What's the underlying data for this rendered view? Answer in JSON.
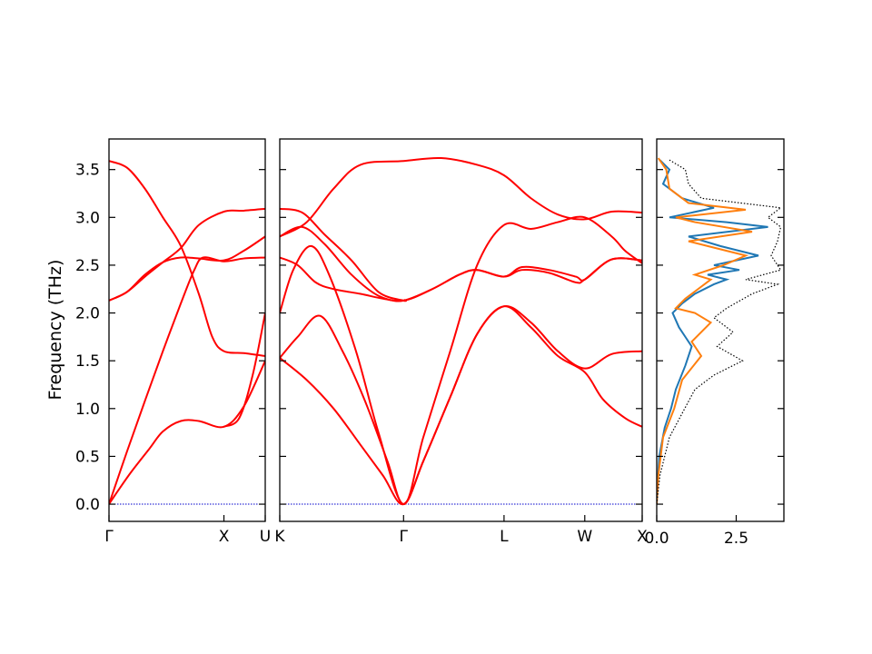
{
  "chart_data": {
    "type": "line",
    "ylabel": "Frequency (THz)",
    "ylim": [
      -0.18,
      3.82
    ],
    "y_ticks": [
      "0.0",
      "0.5",
      "1.0",
      "1.5",
      "2.0",
      "2.5",
      "3.0",
      "3.5"
    ],
    "band_color": "#ff0000",
    "zero_line_color": "#0000cc",
    "band_panels": [
      {
        "path_labels": [
          "Γ",
          "X",
          "U"
        ],
        "x_end": 1.74,
        "x_ticks": [
          0,
          1.28,
          1.74
        ],
        "branches": [
          [
            [
              0,
              0.0
            ],
            [
              0.1,
              0.14
            ],
            [
              0.25,
              0.34
            ],
            [
              0.45,
              0.58
            ],
            [
              0.6,
              0.76
            ],
            [
              0.8,
              0.87
            ],
            [
              1.0,
              0.87
            ],
            [
              1.28,
              0.81
            ],
            [
              1.5,
              1.02
            ],
            [
              1.74,
              1.5
            ]
          ],
          [
            [
              0,
              0.0
            ],
            [
              0.2,
              0.55
            ],
            [
              0.4,
              1.08
            ],
            [
              0.6,
              1.6
            ],
            [
              0.8,
              2.1
            ],
            [
              0.95,
              2.45
            ],
            [
              1.05,
              2.58
            ],
            [
              1.28,
              2.54
            ],
            [
              1.5,
              2.57
            ],
            [
              1.74,
              2.58
            ]
          ],
          [
            [
              0,
              2.13
            ],
            [
              0.2,
              2.22
            ],
            [
              0.4,
              2.4
            ],
            [
              0.6,
              2.53
            ],
            [
              0.8,
              2.58
            ],
            [
              1.0,
              2.57
            ],
            [
              1.28,
              2.55
            ],
            [
              1.5,
              2.65
            ],
            [
              1.74,
              2.8
            ]
          ],
          [
            [
              0,
              3.59
            ],
            [
              0.2,
              3.52
            ],
            [
              0.4,
              3.3
            ],
            [
              0.6,
              3.0
            ],
            [
              0.8,
              2.7
            ],
            [
              1.0,
              2.2
            ],
            [
              1.15,
              1.75
            ],
            [
              1.28,
              1.6
            ],
            [
              1.5,
              1.58
            ],
            [
              1.74,
              1.55
            ]
          ],
          [
            [
              0,
              2.13
            ],
            [
              0.2,
              2.22
            ],
            [
              0.4,
              2.38
            ],
            [
              0.6,
              2.53
            ],
            [
              0.8,
              2.68
            ],
            [
              1.0,
              2.92
            ],
            [
              1.28,
              3.06
            ],
            [
              1.5,
              3.07
            ],
            [
              1.74,
              3.09
            ]
          ],
          [
            [
              1.28,
              0.81
            ],
            [
              1.45,
              0.9
            ],
            [
              1.6,
              1.35
            ],
            [
              1.74,
              2.0
            ]
          ]
        ]
      },
      {
        "path_labels": [
          "K",
          "Γ",
          "L",
          "W",
          "X"
        ],
        "x_end": 4.04,
        "x_ticks": [
          0,
          1.38,
          2.5,
          3.4,
          4.04
        ],
        "branches": [
          [
            [
              0,
              1.53
            ],
            [
              0.3,
              1.3
            ],
            [
              0.6,
              1.0
            ],
            [
              0.9,
              0.62
            ],
            [
              1.15,
              0.3
            ],
            [
              1.38,
              0.0
            ],
            [
              1.6,
              0.45
            ],
            [
              1.9,
              1.12
            ],
            [
              2.2,
              1.78
            ],
            [
              2.5,
              2.07
            ],
            [
              2.8,
              1.9
            ],
            [
              3.1,
              1.6
            ],
            [
              3.4,
              1.42
            ],
            [
              3.7,
              1.57
            ],
            [
              4.04,
              1.6
            ]
          ],
          [
            [
              0,
              1.53
            ],
            [
              0.2,
              1.75
            ],
            [
              0.45,
              1.97
            ],
            [
              0.7,
              1.6
            ],
            [
              0.95,
              1.08
            ],
            [
              1.2,
              0.45
            ],
            [
              1.38,
              0.0
            ],
            [
              1.6,
              0.45
            ],
            [
              1.9,
              1.12
            ],
            [
              2.2,
              1.78
            ],
            [
              2.5,
              2.07
            ],
            [
              2.8,
              1.85
            ],
            [
              3.1,
              1.55
            ],
            [
              3.4,
              1.38
            ],
            [
              3.6,
              1.1
            ],
            [
              3.85,
              0.9
            ],
            [
              4.04,
              0.81
            ]
          ],
          [
            [
              0,
              2.0
            ],
            [
              0.15,
              2.45
            ],
            [
              0.35,
              2.7
            ],
            [
              0.55,
              2.4
            ],
            [
              0.85,
              1.6
            ],
            [
              1.1,
              0.75
            ],
            [
              1.38,
              0.0
            ],
            [
              1.6,
              0.7
            ],
            [
              1.9,
              1.6
            ],
            [
              2.2,
              2.5
            ],
            [
              2.5,
              2.92
            ],
            [
              2.8,
              2.88
            ],
            [
              3.1,
              2.95
            ],
            [
              3.4,
              3.0
            ],
            [
              3.7,
              2.8
            ],
            [
              3.85,
              2.65
            ],
            [
              4.04,
              2.52
            ]
          ],
          [
            [
              0,
              2.58
            ],
            [
              0.2,
              2.5
            ],
            [
              0.4,
              2.32
            ],
            [
              0.6,
              2.25
            ],
            [
              0.9,
              2.2
            ],
            [
              1.15,
              2.15
            ],
            [
              1.38,
              2.13
            ],
            [
              1.7,
              2.25
            ],
            [
              2.0,
              2.4
            ],
            [
              2.2,
              2.45
            ],
            [
              2.5,
              2.38
            ],
            [
              2.7,
              2.45
            ],
            [
              3.0,
              2.42
            ],
            [
              3.3,
              2.32
            ],
            [
              3.4,
              2.35
            ],
            [
              3.7,
              2.56
            ],
            [
              4.04,
              2.55
            ]
          ],
          [
            [
              0,
              2.8
            ],
            [
              0.25,
              2.9
            ],
            [
              0.5,
              2.72
            ],
            [
              0.8,
              2.4
            ],
            [
              1.1,
              2.18
            ],
            [
              1.38,
              2.13
            ],
            [
              1.7,
              2.25
            ],
            [
              2.0,
              2.4
            ],
            [
              2.2,
              2.45
            ],
            [
              2.5,
              2.38
            ],
            [
              2.7,
              2.48
            ],
            [
              3.0,
              2.45
            ],
            [
              3.3,
              2.38
            ],
            [
              3.4,
              2.35
            ],
            [
              3.7,
              2.56
            ],
            [
              4.04,
              2.55
            ]
          ],
          [
            [
              0,
              3.09
            ],
            [
              0.25,
              3.05
            ],
            [
              0.5,
              2.82
            ],
            [
              0.8,
              2.55
            ],
            [
              1.1,
              2.22
            ],
            [
              1.38,
              2.13
            ],
            [
              1.4,
              2.14
            ]
          ],
          [
            [
              0,
              2.8
            ],
            [
              0.3,
              2.95
            ],
            [
              0.6,
              3.3
            ],
            [
              0.9,
              3.55
            ],
            [
              1.38,
              3.59
            ],
            [
              1.8,
              3.62
            ],
            [
              2.2,
              3.55
            ],
            [
              2.5,
              3.44
            ],
            [
              2.8,
              3.2
            ],
            [
              3.1,
              3.03
            ],
            [
              3.4,
              2.98
            ],
            [
              3.7,
              3.06
            ],
            [
              4.04,
              3.05
            ]
          ]
        ]
      }
    ],
    "dos_panel": {
      "x_ticks": [
        "0.0",
        "2.5"
      ],
      "xlim": [
        0,
        4.0
      ],
      "series": [
        {
          "color": "#1f77b4",
          "style": "solid",
          "points": [
            [
              0,
              0.0
            ],
            [
              0.02,
              0.2
            ],
            [
              0.08,
              0.5
            ],
            [
              0.25,
              0.8
            ],
            [
              0.45,
              1.0
            ],
            [
              0.6,
              1.2
            ],
            [
              0.9,
              1.45
            ],
            [
              1.0,
              1.55
            ],
            [
              1.1,
              1.65
            ],
            [
              0.9,
              1.75
            ],
            [
              0.7,
              1.85
            ],
            [
              0.5,
              2.0
            ],
            [
              0.8,
              2.1
            ],
            [
              1.2,
              2.2
            ],
            [
              1.8,
              2.3
            ],
            [
              2.2,
              2.35
            ],
            [
              1.6,
              2.4
            ],
            [
              2.6,
              2.45
            ],
            [
              1.8,
              2.5
            ],
            [
              3.2,
              2.6
            ],
            [
              2.0,
              2.7
            ],
            [
              1.0,
              2.8
            ],
            [
              3.5,
              2.9
            ],
            [
              2.2,
              2.95
            ],
            [
              0.4,
              3.0
            ],
            [
              1.8,
              3.1
            ],
            [
              0.8,
              3.2
            ],
            [
              0.2,
              3.35
            ],
            [
              0.4,
              3.5
            ],
            [
              0.1,
              3.6
            ]
          ]
        },
        {
          "color": "#ff7f0e",
          "style": "solid",
          "points": [
            [
              0,
              0.0
            ],
            [
              0.05,
              0.3
            ],
            [
              0.2,
              0.7
            ],
            [
              0.55,
              1.0
            ],
            [
              0.8,
              1.3
            ],
            [
              1.4,
              1.55
            ],
            [
              1.1,
              1.7
            ],
            [
              1.7,
              1.9
            ],
            [
              1.2,
              2.0
            ],
            [
              0.6,
              2.05
            ],
            [
              0.9,
              2.15
            ],
            [
              1.3,
              2.25
            ],
            [
              1.7,
              2.35
            ],
            [
              1.2,
              2.4
            ],
            [
              2.1,
              2.5
            ],
            [
              2.8,
              2.6
            ],
            [
              1.6,
              2.7
            ],
            [
              1.0,
              2.75
            ],
            [
              3.0,
              2.85
            ],
            [
              1.2,
              2.95
            ],
            [
              0.6,
              3.0
            ],
            [
              2.8,
              3.08
            ],
            [
              1.0,
              3.15
            ],
            [
              0.4,
              3.3
            ],
            [
              0.3,
              3.5
            ],
            [
              0.05,
              3.62
            ]
          ]
        },
        {
          "color": "#000000",
          "style": "dotted",
          "points": [
            [
              0,
              0.0
            ],
            [
              0.1,
              0.3
            ],
            [
              0.4,
              0.7
            ],
            [
              0.8,
              0.95
            ],
            [
              1.2,
              1.2
            ],
            [
              1.8,
              1.35
            ],
            [
              2.7,
              1.5
            ],
            [
              1.9,
              1.65
            ],
            [
              2.4,
              1.8
            ],
            [
              1.8,
              1.95
            ],
            [
              2.2,
              2.05
            ],
            [
              3.0,
              2.2
            ],
            [
              3.8,
              2.3
            ],
            [
              2.8,
              2.35
            ],
            [
              3.9,
              2.45
            ],
            [
              3.6,
              2.6
            ],
            [
              3.8,
              2.75
            ],
            [
              3.9,
              2.9
            ],
            [
              3.5,
              3.0
            ],
            [
              3.9,
              3.1
            ],
            [
              1.4,
              3.2
            ],
            [
              1.0,
              3.35
            ],
            [
              0.9,
              3.5
            ],
            [
              0.4,
              3.6
            ]
          ]
        }
      ]
    }
  }
}
